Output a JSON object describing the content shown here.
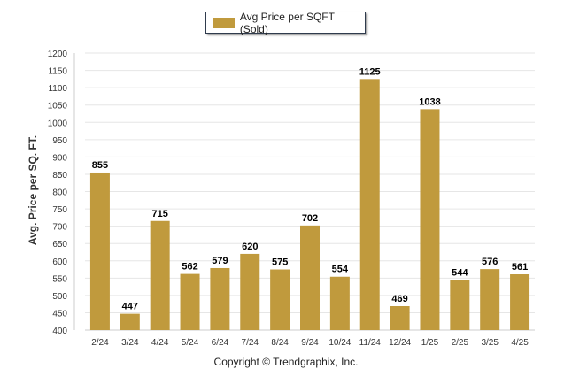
{
  "legend": {
    "label": "Avg Price per SQFT (Sold)"
  },
  "footer": {
    "copyright": "Copyright © Trendgraphix, Inc."
  },
  "colors": {
    "bar": "#c09a3d",
    "grid": "#e6e6e6",
    "axis_text": "#333333"
  },
  "chart_data": {
    "type": "bar",
    "title": "",
    "xlabel": "",
    "ylabel": "Avg. Price per SQ. FT.",
    "ylim": [
      400,
      1200
    ],
    "ytick_step": 50,
    "grid": true,
    "legend_position": "top-center",
    "categories": [
      "2/24",
      "3/24",
      "4/24",
      "5/24",
      "6/24",
      "7/24",
      "8/24",
      "9/24",
      "10/24",
      "11/24",
      "12/24",
      "1/25",
      "2/25",
      "3/25",
      "4/25"
    ],
    "series": [
      {
        "name": "Avg Price per SQFT (Sold)",
        "values": [
          855,
          447,
          715,
          562,
          579,
          620,
          575,
          702,
          554,
          1125,
          469,
          1038,
          544,
          576,
          561
        ]
      }
    ]
  }
}
